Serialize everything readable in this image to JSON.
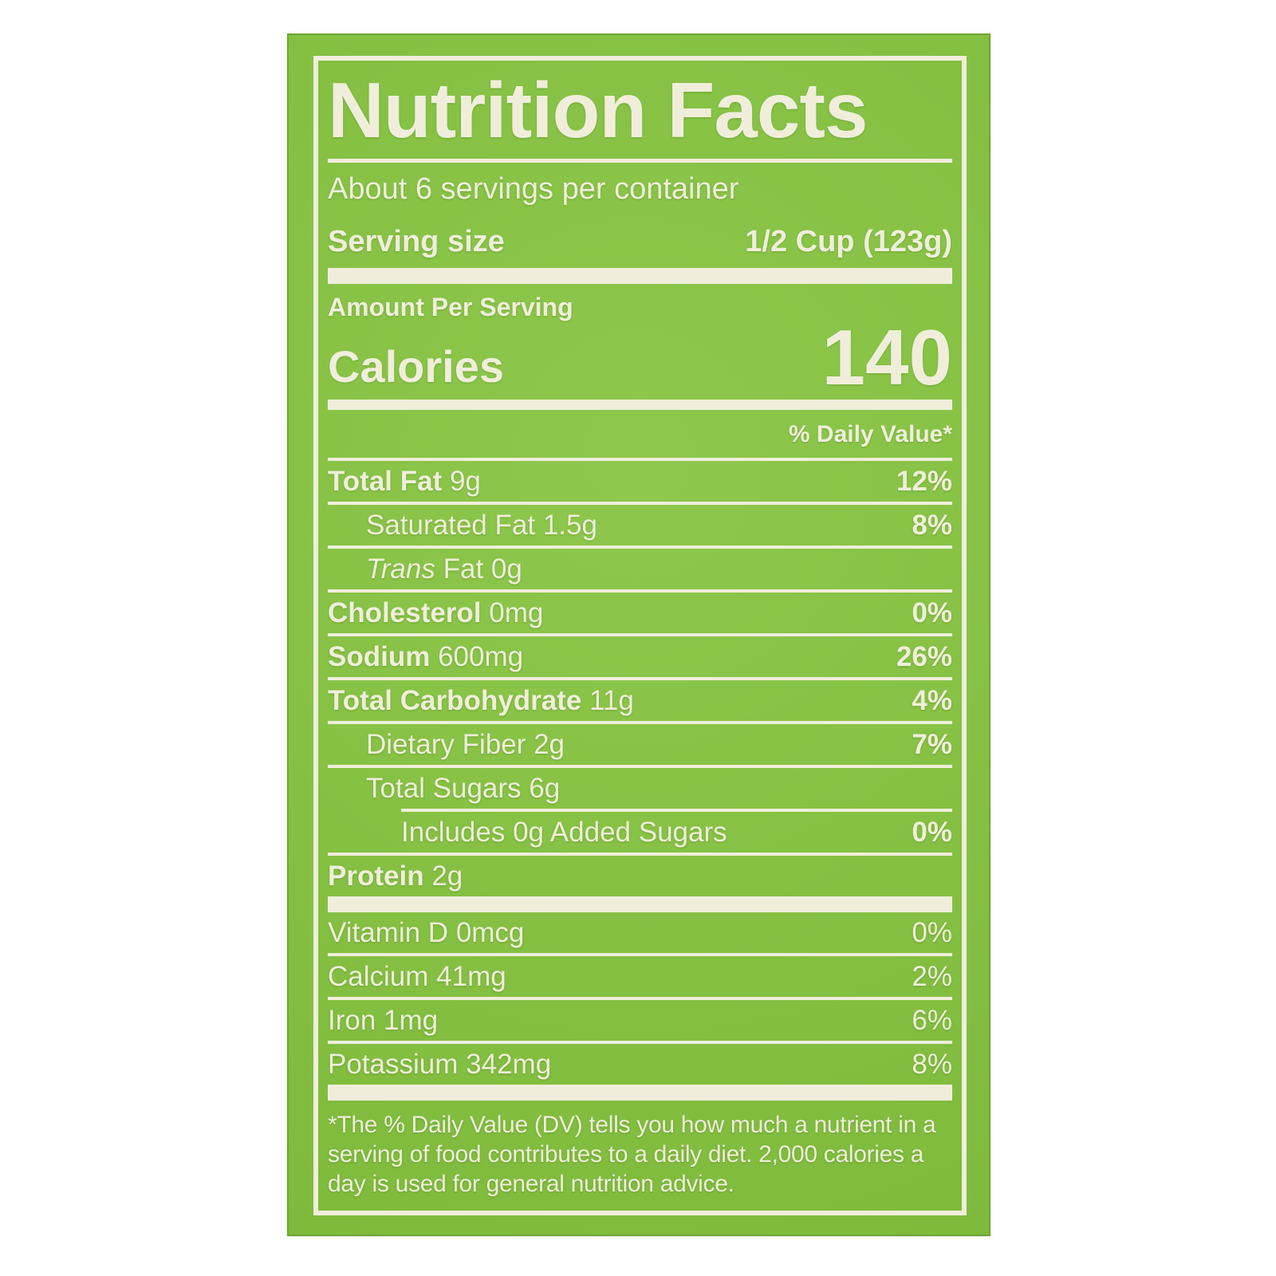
{
  "page": {
    "background_color": "#ffffff"
  },
  "label": {
    "colors": {
      "green": "#85c43f",
      "cream": "#f0eedb"
    },
    "title": "Nutrition Facts",
    "servings_per_container": "About 6 servings per container",
    "serving_size": {
      "label": "Serving size",
      "value": "1/2 Cup (123g)"
    },
    "amount_per_serving": "Amount Per Serving",
    "calories": {
      "label": "Calories",
      "value": "140"
    },
    "daily_value_header": "% Daily Value*",
    "nutrients": [
      {
        "name": "Total Fat",
        "amount": "9g",
        "dv": "12%"
      },
      {
        "name": "Saturated Fat",
        "amount": "1.5g",
        "dv": "8%"
      },
      {
        "name": "Trans Fat",
        "name_italic": "Trans",
        "name_rest": "Fat",
        "amount": "0g",
        "dv": ""
      },
      {
        "name": "Cholesterol",
        "amount": "0mg",
        "dv": "0%"
      },
      {
        "name": "Sodium",
        "amount": "600mg",
        "dv": "26%"
      },
      {
        "name": "Total Carbohydrate",
        "amount": "11g",
        "dv": "4%"
      },
      {
        "name": "Dietary Fiber",
        "amount": "2g",
        "dv": "7%"
      },
      {
        "name": "Total Sugars",
        "amount": "6g",
        "dv": ""
      },
      {
        "name": "Includes 0g Added Sugars",
        "amount": "",
        "dv": "0%"
      },
      {
        "name": "Protein",
        "amount": "2g",
        "dv": ""
      }
    ],
    "vitamins": [
      {
        "name": "Vitamin D",
        "amount": "0mcg",
        "dv": "0%"
      },
      {
        "name": "Calcium",
        "amount": "41mg",
        "dv": "2%"
      },
      {
        "name": "Iron",
        "amount": "1mg",
        "dv": "6%"
      },
      {
        "name": "Potassium",
        "amount": "342mg",
        "dv": "8%"
      }
    ],
    "footnote": "*The % Daily Value (DV) tells you how much a nutrient in a serving of food contributes to a daily diet. 2,000 calories a day is used for general nutrition advice."
  }
}
